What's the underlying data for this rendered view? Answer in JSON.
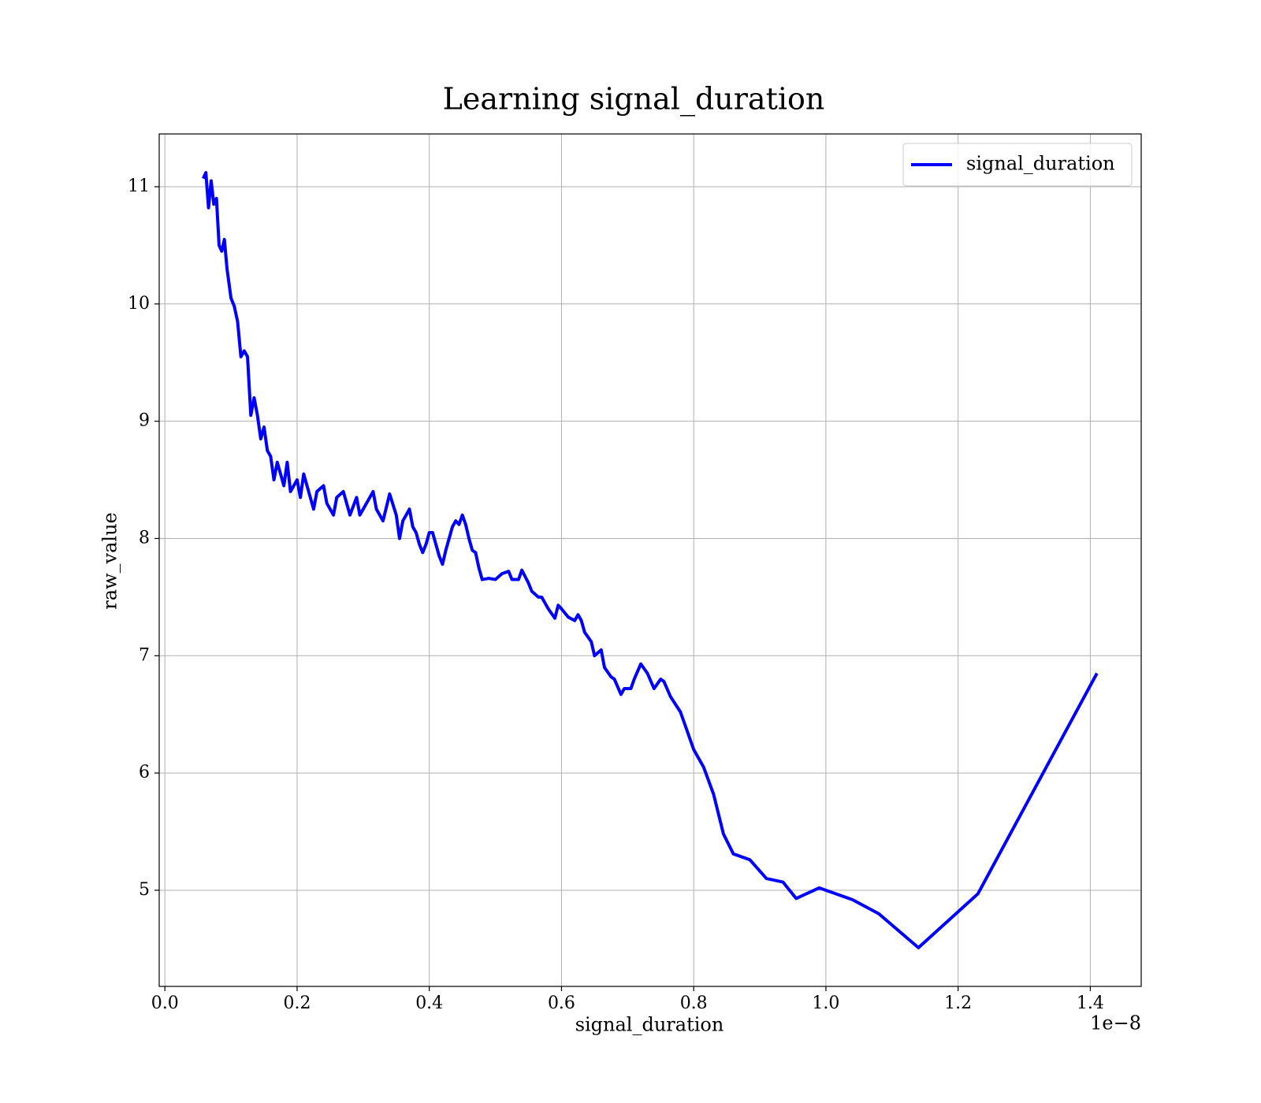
{
  "chart_data": {
    "type": "line",
    "title": "Learning signal_duration",
    "x_label": "signal_duration",
    "y_label": "raw_value",
    "x_offset_label": "1e−8",
    "xlim": [
      -0.0086,
      1.477
    ],
    "ylim": [
      4.18,
      11.45
    ],
    "xticks": [
      {
        "value": 0,
        "label": "0.0"
      },
      0.2,
      0.4,
      0.6,
      0.8,
      {
        "value": 1,
        "label": "1.0"
      },
      1.2,
      1.4
    ],
    "yticks": [
      5,
      6,
      7,
      8,
      9,
      10,
      11
    ],
    "grid": true,
    "legend": "upper right",
    "x": [
      0.058,
      0.062,
      0.066,
      0.07,
      0.074,
      0.078,
      0.082,
      0.086,
      0.09,
      0.094,
      0.1,
      0.105,
      0.11,
      0.115,
      0.12,
      0.125,
      0.13,
      0.135,
      0.14,
      0.145,
      0.15,
      0.155,
      0.16,
      0.165,
      0.17,
      0.18,
      0.185,
      0.19,
      0.2,
      0.205,
      0.21,
      0.22,
      0.225,
      0.23,
      0.24,
      0.245,
      0.25,
      0.255,
      0.26,
      0.27,
      0.28,
      0.29,
      0.295,
      0.3,
      0.31,
      0.315,
      0.32,
      0.33,
      0.34,
      0.35,
      0.355,
      0.36,
      0.37,
      0.375,
      0.38,
      0.385,
      0.39,
      0.395,
      0.4,
      0.405,
      0.41,
      0.415,
      0.42,
      0.425,
      0.43,
      0.435,
      0.44,
      0.445,
      0.45,
      0.455,
      0.46,
      0.465,
      0.47,
      0.475,
      0.48,
      0.49,
      0.5,
      0.51,
      0.52,
      0.525,
      0.535,
      0.54,
      0.55,
      0.555,
      0.565,
      0.57,
      0.575,
      0.58,
      0.59,
      0.595,
      0.6,
      0.61,
      0.62,
      0.625,
      0.63,
      0.635,
      0.645,
      0.65,
      0.66,
      0.665,
      0.675,
      0.68,
      0.69,
      0.695,
      0.705,
      0.71,
      0.72,
      0.73,
      0.74,
      0.75,
      0.755,
      0.765,
      0.78,
      0.8,
      0.815,
      0.83,
      0.845,
      0.86,
      0.885,
      0.91,
      0.935,
      0.955,
      0.99,
      1.04,
      1.08,
      1.14,
      1.23,
      1.41
    ],
    "series": [
      {
        "name": "signal_duration",
        "color": "#0000ff",
        "values": [
          11.07,
          11.12,
          10.82,
          11.05,
          10.85,
          10.9,
          10.5,
          10.45,
          10.55,
          10.3,
          10.05,
          9.98,
          9.85,
          9.55,
          9.6,
          9.55,
          9.05,
          9.2,
          9.05,
          8.85,
          8.95,
          8.75,
          8.7,
          8.5,
          8.65,
          8.45,
          8.65,
          8.4,
          8.5,
          8.35,
          8.55,
          8.35,
          8.25,
          8.4,
          8.45,
          8.3,
          8.25,
          8.2,
          8.35,
          8.4,
          8.2,
          8.35,
          8.2,
          8.25,
          8.35,
          8.4,
          8.25,
          8.15,
          8.38,
          8.2,
          8.0,
          8.15,
          8.25,
          8.1,
          8.05,
          7.95,
          7.88,
          7.95,
          8.05,
          8.05,
          7.95,
          7.85,
          7.78,
          7.9,
          8.0,
          8.1,
          8.15,
          8.12,
          8.2,
          8.12,
          8.0,
          7.9,
          7.88,
          7.75,
          7.65,
          7.66,
          7.65,
          7.7,
          7.72,
          7.65,
          7.65,
          7.73,
          7.62,
          7.55,
          7.5,
          7.5,
          7.45,
          7.4,
          7.32,
          7.43,
          7.4,
          7.33,
          7.3,
          7.35,
          7.3,
          7.2,
          7.12,
          7.0,
          7.05,
          6.9,
          6.82,
          6.8,
          6.67,
          6.72,
          6.72,
          6.8,
          6.93,
          6.85,
          6.72,
          6.8,
          6.78,
          6.65,
          6.52,
          6.2,
          6.05,
          5.82,
          5.48,
          5.31,
          5.26,
          5.1,
          5.07,
          4.93,
          5.02,
          4.92,
          4.8,
          4.51,
          4.97,
          6.85
        ]
      }
    ]
  }
}
